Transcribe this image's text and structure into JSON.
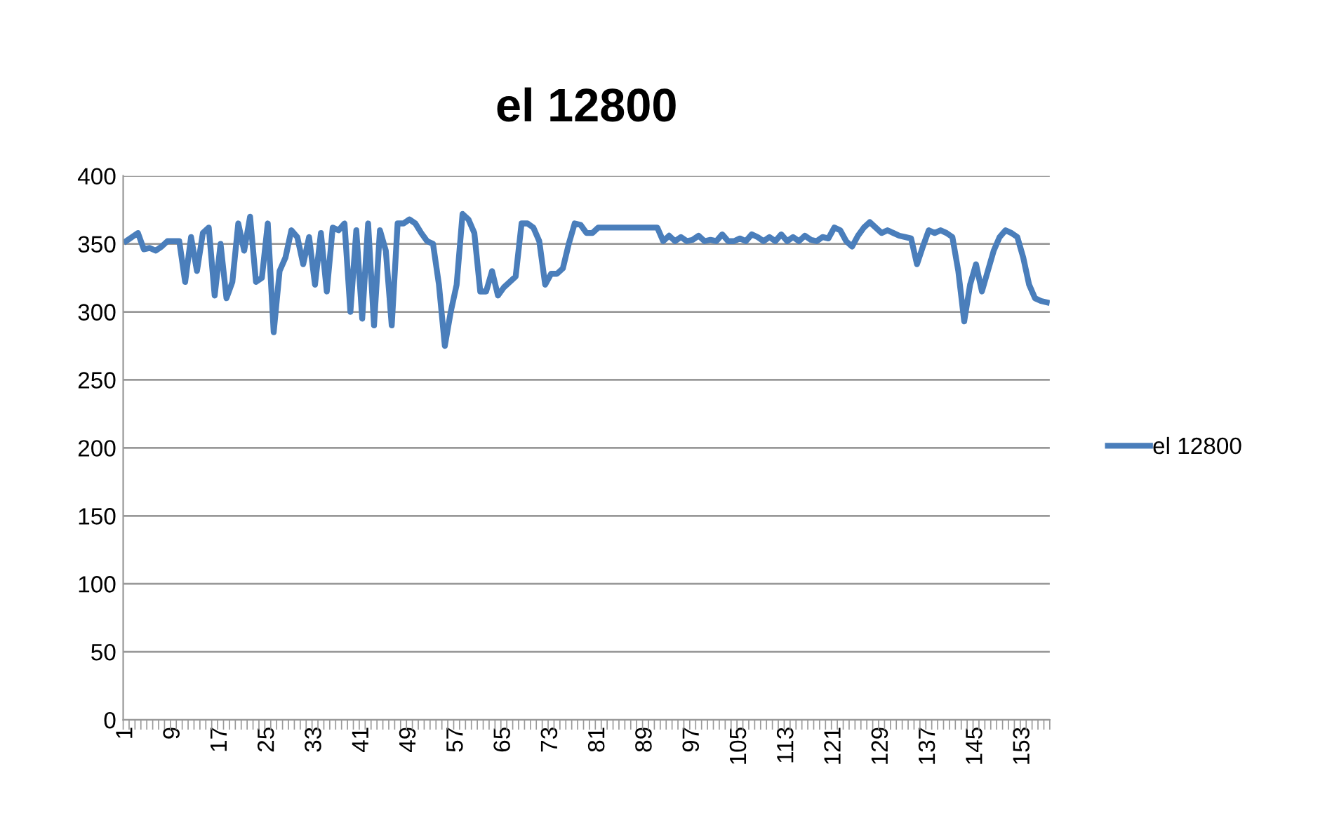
{
  "chart_data": {
    "type": "line",
    "title": "el 12800",
    "categories": [
      "1",
      null,
      null,
      null,
      null,
      null,
      null,
      null,
      "9",
      null,
      null,
      null,
      null,
      null,
      null,
      null,
      "17",
      null,
      null,
      null,
      null,
      null,
      null,
      null,
      "25",
      null,
      null,
      null,
      null,
      null,
      null,
      null,
      "33",
      null,
      null,
      null,
      null,
      null,
      null,
      null,
      "41",
      null,
      null,
      null,
      null,
      null,
      null,
      null,
      "49",
      null,
      null,
      null,
      null,
      null,
      null,
      null,
      "57",
      null,
      null,
      null,
      null,
      null,
      null,
      null,
      "65",
      null,
      null,
      null,
      null,
      null,
      null,
      null,
      "73",
      null,
      null,
      null,
      null,
      null,
      null,
      null,
      "81",
      null,
      null,
      null,
      null,
      null,
      null,
      null,
      "89",
      null,
      null,
      null,
      null,
      null,
      null,
      null,
      "97",
      null,
      null,
      null,
      null,
      null,
      null,
      null,
      "105",
      null,
      null,
      null,
      null,
      null,
      null,
      null,
      "113",
      null,
      null,
      null,
      null,
      null,
      null,
      null,
      "121",
      null,
      null,
      null,
      null,
      null,
      null,
      null,
      "129",
      null,
      null,
      null,
      null,
      null,
      null,
      null,
      "137",
      null,
      null,
      null,
      null,
      null,
      null,
      null,
      "145",
      null,
      null,
      null,
      null,
      null,
      null,
      null,
      "153",
      null,
      null,
      null,
      null
    ],
    "series": [
      {
        "name": "el 12800",
        "color": "#4a7ebb",
        "values": [
          352,
          355,
          358,
          346,
          347,
          345,
          348,
          352,
          352,
          352,
          322,
          355,
          330,
          358,
          362,
          312,
          350,
          310,
          322,
          365,
          345,
          370,
          322,
          325,
          365,
          285,
          330,
          340,
          360,
          355,
          335,
          355,
          320,
          358,
          315,
          362,
          360,
          365,
          300,
          360,
          295,
          365,
          290,
          360,
          345,
          290,
          365,
          365,
          368,
          365,
          358,
          352,
          350,
          320,
          275,
          300,
          320,
          372,
          368,
          358,
          315,
          315,
          330,
          312,
          318,
          322,
          326,
          365,
          365,
          362,
          352,
          320,
          328,
          328,
          332,
          350,
          365,
          364,
          358,
          358,
          362,
          362,
          362,
          362,
          362,
          362,
          362,
          362,
          362,
          362,
          362,
          352,
          356,
          352,
          355,
          352,
          353,
          356,
          352,
          353,
          352,
          357,
          352,
          352,
          354,
          352,
          357,
          355,
          352,
          355,
          352,
          357,
          352,
          355,
          352,
          356,
          353,
          352,
          355,
          354,
          362,
          360,
          352,
          348,
          356,
          362,
          366,
          362,
          358,
          360,
          358,
          356,
          355,
          354,
          335,
          348,
          360,
          358,
          360,
          358,
          355,
          330,
          293,
          320,
          335,
          315,
          330,
          345,
          355,
          360,
          358,
          355,
          340,
          320,
          310,
          308,
          307
        ]
      }
    ],
    "ylim": [
      0,
      400
    ],
    "yticks": [
      0,
      50,
      100,
      150,
      200,
      250,
      300,
      350,
      400
    ],
    "grid": "y",
    "legend": "right",
    "marker": "none",
    "line_style": "solid"
  }
}
